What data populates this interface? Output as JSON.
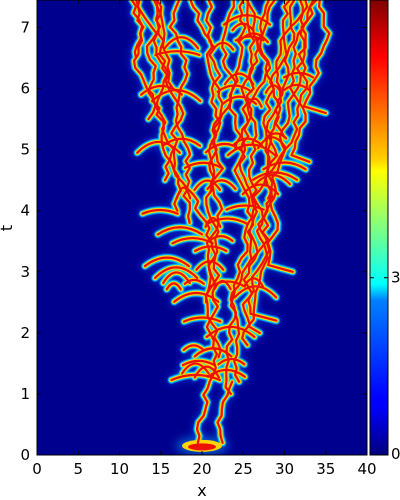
{
  "chart_data": {
    "type": "heatmap",
    "title": "",
    "xlabel": "x",
    "ylabel": "t",
    "xlim": [
      0,
      40
    ],
    "ylim": [
      0,
      7.45
    ],
    "x_ticks": [
      0,
      5,
      10,
      15,
      20,
      25,
      30,
      35,
      40
    ],
    "y_ticks": [
      0,
      1,
      2,
      3,
      4,
      5,
      6,
      7
    ],
    "colorbar": {
      "colormap": "jet",
      "range": [
        0,
        7.7
      ],
      "ticks": [
        0,
        3
      ]
    },
    "grid": false,
    "background_color": "#00008f",
    "description_values": {
      "initial_pulse_center_x": 20,
      "initial_pulse_t": 0.2,
      "spread_left_edge_at_t_max_x": 10,
      "spread_right_edge_at_t_max_x": 37
    }
  }
}
